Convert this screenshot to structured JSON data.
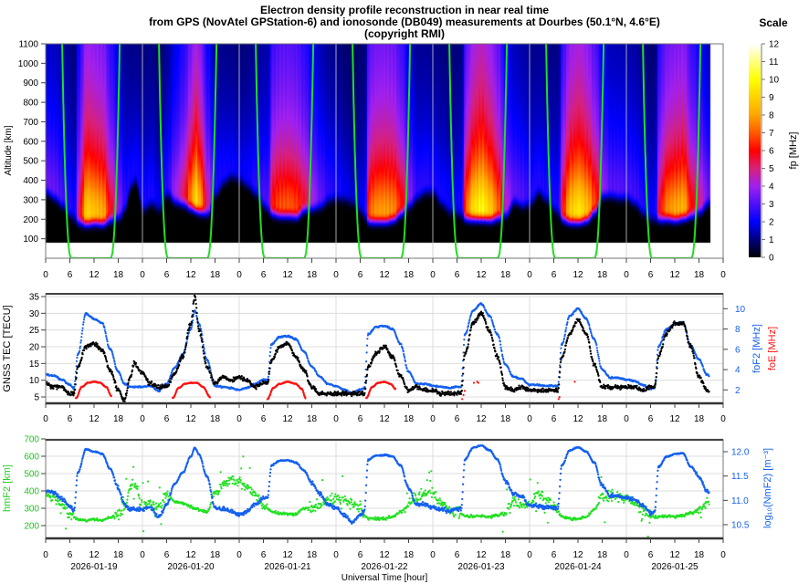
{
  "title": {
    "line1": "Electron density profile reconstruction in near real time",
    "line2": "from GPS (NovAtel GPStation-6) and ionosonde (DB049) measurements at Dourbes (50.1°N, 4.6°E)",
    "line3": "(copyright RMI)"
  },
  "colorbar": {
    "title": "Scale",
    "label": "fp [MHz]",
    "ticks": [
      0,
      1,
      2,
      3,
      4,
      5,
      6,
      7,
      8,
      9,
      10,
      11,
      12
    ],
    "stops": [
      [
        0,
        "#000000"
      ],
      [
        1,
        "#00007f"
      ],
      [
        2,
        "#0000ff"
      ],
      [
        4,
        "#a020f0"
      ],
      [
        5,
        "#d8207a"
      ],
      [
        6,
        "#ff0000"
      ],
      [
        7,
        "#ff5a00"
      ],
      [
        8,
        "#ffa500"
      ],
      [
        10,
        "#ffff00"
      ],
      [
        12,
        "#ffffff"
      ]
    ]
  },
  "xaxis": {
    "hour_ticks": [
      0,
      6,
      12,
      18
    ],
    "dates": [
      "2026-01-19",
      "2026-01-20",
      "2026-01-21",
      "2026-01-22",
      "2026-01-23",
      "2026-01-24",
      "2026-01-25"
    ],
    "label": "Universal Time [hour]"
  },
  "colors": {
    "tec": "#000000",
    "foF2": "#1460f0",
    "foE": "#ff1010",
    "hmF2": "#22e022",
    "NmF2": "#1460f0",
    "terminator": "#22dd22"
  },
  "chart_data": [
    {
      "type": "heatmap",
      "ylabel": "Altitude [km]",
      "ylim": [
        0,
        1100
      ],
      "yticks": [
        100,
        200,
        300,
        400,
        500,
        600,
        700,
        800,
        900,
        1000,
        1100
      ],
      "zlabel": "fp [MHz]",
      "zlim": [
        0,
        12
      ],
      "note_source": "profile derived from foF2 and hmF2 series",
      "solar_terminator_ground_hours": {
        "sunrise": 6.25,
        "sunset": 16.2
      }
    },
    {
      "type": "scatter",
      "ylabel": "GNSS TEC [TECU]",
      "ylim": [
        3,
        36
      ],
      "yticks": [
        5,
        10,
        15,
        20,
        25,
        30,
        35
      ],
      "y2label_foF2": "foF2 [MHz]",
      "y2label_foE": "foE [MHz]",
      "y2ticks": [
        2,
        4,
        6,
        8,
        10
      ],
      "days": [
        {
          "date": "2026-01-19",
          "hours": [
            0,
            2,
            4,
            6,
            7,
            8,
            10,
            12,
            14,
            16,
            18,
            19.5,
            21,
            22
          ],
          "tec": [
            9,
            8,
            8,
            6,
            6,
            14,
            20,
            21,
            19,
            13,
            7,
            4,
            11,
            15
          ],
          "foF2": [
            3.5,
            3.4,
            3.0,
            2.5,
            2.2,
            5.5,
            9.5,
            9.0,
            8.6,
            6.0,
            3.8,
            2.6,
            2.3,
            2.3
          ],
          "foE": {
            "hours": [
              7.5,
              9,
              10.5,
              12,
              13.5,
              15,
              16.3
            ],
            "values": [
              1.2,
              2.3,
              2.7,
              2.8,
              2.7,
              2.3,
              1.4
            ]
          }
        },
        {
          "date": "2026-01-20",
          "hours": [
            0,
            2,
            4,
            6,
            8,
            10,
            12,
            13,
            14,
            16,
            18,
            20,
            22
          ],
          "tec": [
            12,
            9,
            8,
            8,
            12,
            17,
            27,
            35,
            25,
            14,
            9,
            11,
            10
          ],
          "foF2": [
            2.3,
            2.4,
            1.9,
            2.6,
            4.2,
            5.5,
            8.0,
            9.8,
            8.5,
            5.0,
            2.4,
            2.3,
            2.2
          ],
          "foE": {
            "hours": [
              7.5,
              9,
              10.5,
              12,
              13.5,
              15,
              16.8
            ],
            "values": [
              1.2,
              2.2,
              2.6,
              2.7,
              2.7,
              2.3,
              1.3
            ]
          }
        },
        {
          "date": "2026-01-21",
          "hours": [
            0,
            2,
            4,
            6,
            7,
            8,
            10,
            12,
            14,
            16,
            18,
            20,
            22
          ],
          "tec": [
            11,
            10,
            8,
            9,
            9,
            16,
            20,
            21,
            17,
            13,
            8,
            6,
            6
          ],
          "foF2": [
            2.0,
            2.2,
            2.6,
            3.0,
            3.0,
            6.5,
            7.2,
            7.3,
            7.0,
            5.8,
            4.3,
            3.3,
            2.6
          ],
          "foE": {
            "hours": [
              7,
              8.5,
              10,
              12,
              14,
              15.5,
              16.5
            ],
            "values": [
              1.1,
              2.2,
              2.6,
              2.8,
              2.6,
              2.1,
              1.2
            ]
          }
        },
        {
          "date": "2026-01-22",
          "hours": [
            0,
            2,
            4,
            6,
            7,
            8,
            10,
            12,
            14,
            16,
            18,
            20,
            22
          ],
          "tec": [
            6,
            6,
            6,
            6,
            6,
            14,
            18,
            20,
            17,
            11,
            7,
            8,
            7
          ],
          "foF2": [
            2.4,
            2.0,
            1.7,
            2.0,
            2.2,
            7.5,
            8.2,
            8.3,
            8.0,
            6.5,
            3.8,
            2.6,
            2.6
          ],
          "foE": {
            "hours": [
              7.5,
              9,
              10.5,
              12,
              13.5,
              14.8
            ],
            "values": [
              1.2,
              2.3,
              2.7,
              2.8,
              2.6,
              2.1
            ]
          }
        },
        {
          "date": "2026-01-23",
          "hours": [
            0,
            2,
            4,
            6,
            7,
            8,
            10,
            12,
            14,
            16,
            18,
            20,
            22
          ],
          "tec": [
            7,
            6,
            6,
            6,
            6,
            18,
            27,
            30,
            25,
            17,
            8,
            7,
            8
          ],
          "foF2": [
            2.4,
            2.3,
            2.2,
            2.3,
            2.3,
            7.5,
            9.8,
            10.5,
            9.3,
            7.5,
            4.5,
            3.3,
            3.1
          ],
          "foE_points": {
            "hours": [
              7.3,
              7.6,
              7.9,
              10.2,
              11,
              11.3
            ],
            "values": [
              1.1,
              1.5,
              1.9,
              2.7,
              2.8,
              2.7
            ]
          }
        },
        {
          "date": "2026-01-24",
          "hours": [
            0,
            2,
            4,
            6,
            7,
            8,
            10,
            12,
            14,
            16,
            18,
            20,
            22
          ],
          "tec": [
            7,
            7,
            7,
            7,
            7,
            17,
            24,
            28,
            24,
            15,
            8,
            8,
            8
          ],
          "foF2": [
            2.5,
            2.5,
            2.4,
            2.4,
            2.4,
            6.5,
            9.3,
            10.0,
            9.0,
            7.0,
            4.0,
            3.2,
            3.2
          ],
          "foE_points": {
            "hours": [
              7.2,
              7.4,
              11.2
            ],
            "values": [
              1.1,
              1.3,
              2.8
            ]
          }
        },
        {
          "date": "2026-01-25",
          "hours": [
            0,
            2,
            4,
            6,
            7,
            8,
            10,
            12,
            14,
            16,
            18,
            20,
            20.5
          ],
          "tec": [
            8,
            8,
            7,
            8,
            8,
            17,
            24,
            27,
            27,
            20,
            11,
            7,
            7
          ],
          "foF2": [
            3.0,
            2.9,
            2.5,
            2.1,
            2.2,
            6.3,
            8.0,
            8.5,
            8.7,
            6.3,
            5.0,
            3.5,
            3.4
          ]
        }
      ]
    },
    {
      "type": "scatter",
      "ylabel": "hmF2 [km]",
      "ylim": [
        120,
        700
      ],
      "yticks": [
        200,
        300,
        400,
        500,
        600,
        700
      ],
      "y2label": "log₁₀(NmF2) [m⁻³]",
      "y2ticks": [
        10.5,
        11.0,
        11.5,
        12.0
      ],
      "days": [
        {
          "date": "2026-01-19",
          "hours": [
            0,
            2,
            4,
            6,
            7,
            8,
            10,
            12,
            14,
            16,
            18,
            19.5,
            21,
            22
          ],
          "hmF2": [
            390,
            360,
            320,
            270,
            250,
            235,
            230,
            235,
            230,
            250,
            260,
            300,
            420,
            450
          ],
          "log10_NmF2": [
            11.18,
            11.16,
            11.05,
            10.89,
            10.78,
            11.57,
            12.05,
            12.0,
            11.96,
            11.65,
            11.25,
            10.92,
            10.82,
            10.82
          ]
        },
        {
          "date": "2026-01-20",
          "hours": [
            0,
            2,
            4,
            6,
            8,
            10,
            12,
            13,
            14,
            16,
            18,
            20,
            22
          ],
          "hmF2": [
            300,
            330,
            300,
            380,
            340,
            330,
            310,
            300,
            290,
            280,
            380,
            440,
            470
          ],
          "log10_NmF2": [
            10.82,
            10.85,
            10.65,
            10.92,
            11.34,
            11.57,
            11.9,
            12.08,
            11.95,
            11.49,
            10.85,
            10.82,
            10.78
          ]
        },
        {
          "date": "2026-01-21",
          "hours": [
            0,
            2,
            4,
            6,
            7,
            8,
            10,
            12,
            14,
            16,
            18,
            20,
            22
          ],
          "hmF2": [
            450,
            420,
            380,
            320,
            300,
            280,
            270,
            270,
            265,
            300,
            305,
            315,
            350
          ],
          "log10_NmF2": [
            10.7,
            10.78,
            10.92,
            11.05,
            11.05,
            11.72,
            11.81,
            11.82,
            11.78,
            11.62,
            11.36,
            11.13,
            10.92
          ]
        },
        {
          "date": "2026-01-22",
          "hours": [
            0,
            2,
            4,
            6,
            7,
            8,
            10,
            12,
            14,
            16,
            18,
            20,
            22
          ],
          "hmF2": [
            360,
            350,
            330,
            290,
            260,
            240,
            240,
            240,
            250,
            280,
            320,
            360,
            390
          ],
          "log10_NmF2": [
            10.85,
            10.7,
            10.55,
            10.7,
            10.78,
            11.84,
            11.92,
            11.93,
            11.9,
            11.72,
            11.25,
            10.92,
            10.92
          ]
        },
        {
          "date": "2026-01-23",
          "hours": [
            0,
            2,
            4,
            6,
            7,
            8,
            10,
            12,
            14,
            16,
            18,
            20,
            22
          ],
          "hmF2": [
            390,
            330,
            290,
            280,
            270,
            255,
            255,
            255,
            250,
            260,
            275,
            340,
            320
          ],
          "log10_NmF2": [
            10.85,
            10.82,
            10.78,
            10.82,
            10.82,
            11.84,
            12.08,
            12.13,
            12.03,
            11.84,
            11.4,
            11.13,
            11.08
          ]
        },
        {
          "date": "2026-01-24",
          "hours": [
            0,
            2,
            4,
            6,
            7,
            8,
            10,
            12,
            14,
            16,
            18,
            20,
            22
          ],
          "hmF2": [
            330,
            390,
            350,
            300,
            280,
            250,
            240,
            240,
            250,
            290,
            370,
            370,
            360
          ],
          "log10_NmF2": [
            10.89,
            10.89,
            10.85,
            10.85,
            10.85,
            11.72,
            12.03,
            12.09,
            12.0,
            11.78,
            11.3,
            11.1,
            11.1
          ]
        },
        {
          "date": "2026-01-25",
          "hours": [
            0,
            2,
            4,
            6,
            7,
            8,
            10,
            12,
            14,
            16,
            18,
            20,
            20.5
          ],
          "hmF2": [
            360,
            330,
            280,
            250,
            250,
            250,
            255,
            250,
            260,
            270,
            290,
            330,
            335
          ],
          "log10_NmF2": [
            11.05,
            11.02,
            10.89,
            10.74,
            10.78,
            11.69,
            11.9,
            11.95,
            11.97,
            11.69,
            11.49,
            11.18,
            11.16
          ]
        }
      ]
    }
  ]
}
